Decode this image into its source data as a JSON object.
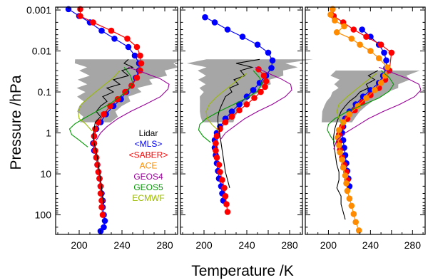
{
  "chart_data": {
    "type": "line",
    "xlabel": "Temperature /K",
    "ylabel": "Pressure /hPa",
    "x_ticks": [
      "200",
      "240",
      "280"
    ],
    "x_tick_values": [
      200,
      240,
      280
    ],
    "y_ticks": [
      "0.001",
      "0.01",
      "0.1",
      "1",
      "10",
      "100"
    ],
    "y_tick_values": [
      0.001,
      0.01,
      0.1,
      1,
      10,
      100
    ],
    "xlim": [
      178,
      292
    ],
    "ylim": [
      300,
      0.00085
    ],
    "y_scale": "log",
    "legend": {
      "placement": "lower-right of first panel",
      "entries": [
        {
          "label": "Lidar",
          "color": "#000000"
        },
        {
          "label": "<MLS>",
          "color": "#0000ff"
        },
        {
          "label": "<SABER>",
          "color": "#ff0000"
        },
        {
          "label": "ACE",
          "color": "#ff8c00"
        },
        {
          "label": "GEOS4",
          "color": "#990099"
        },
        {
          "label": "GEOS5",
          "color": "#009900"
        },
        {
          "label": "ECMWF",
          "color": "#99bb00"
        }
      ]
    },
    "panels": [
      {
        "series": [
          {
            "name": "<MLS>",
            "color": "#0000ff",
            "marker": "circle",
            "x": [
              190,
              200,
              210,
              221,
              233,
              246,
              252,
              256,
              256,
              253,
              249,
              244,
              239,
              232,
              225,
              220,
              216,
              214,
              213,
              214,
              216,
              217,
              218,
              219,
              220,
              221,
              222,
              222,
              223,
              224,
              223,
              220
            ],
            "y": [
              0.00095,
              0.0014,
              0.002,
              0.0032,
              0.005,
              0.008,
              0.013,
              0.02,
              0.03,
              0.045,
              0.07,
              0.1,
              0.15,
              0.22,
              0.35,
              0.55,
              0.8,
              1.2,
              1.8,
              2.7,
              4,
              6,
              9,
              13,
              20,
              30,
              45,
              65,
              100,
              140,
              200,
              250
            ]
          },
          {
            "name": "<SABER>",
            "color": "#ff0000",
            "marker": "circle",
            "x": [
              201,
              201,
              213,
              230,
              245,
              254,
              257,
              258,
              257,
              254,
              249,
              243,
              236,
              229,
              223,
              218,
              215,
              214,
              214,
              215,
              216,
              217,
              218,
              219,
              220,
              220,
              221,
              221,
              222
            ],
            "y": [
              0.00095,
              0.0014,
              0.002,
              0.0032,
              0.005,
              0.008,
              0.013,
              0.02,
              0.03,
              0.045,
              0.07,
              0.1,
              0.15,
              0.22,
              0.35,
              0.55,
              0.8,
              1.2,
              1.8,
              2.7,
              4,
              6,
              9,
              13,
              20,
              30,
              45,
              65,
              100
            ]
          },
          {
            "name": "Lidar",
            "color": "#000000",
            "marker": "none",
            "x": [
              246,
              242,
              250,
              240,
              246,
              232,
              238,
              226,
              232,
              222,
              226,
              220,
              216,
              220,
              215,
              214,
              213,
              214,
              216,
              217,
              218,
              219,
              220,
              221,
              222,
              223
            ],
            "y": [
              0.016,
              0.02,
              0.025,
              0.03,
              0.04,
              0.05,
              0.065,
              0.08,
              0.1,
              0.13,
              0.17,
              0.22,
              0.3,
              0.4,
              0.55,
              0.8,
              1.2,
              1.8,
              2.7,
              4,
              6,
              9,
              14,
              22,
              35,
              55
            ]
          },
          {
            "name": "GEOS4",
            "color": "#990099",
            "marker": "none",
            "x": [
              246,
              262,
              276,
              284,
              283,
              276,
              262,
              248,
              236,
              226,
              220,
              216
            ],
            "y": [
              0.025,
              0.035,
              0.048,
              0.065,
              0.085,
              0.13,
              0.2,
              0.3,
              0.45,
              0.7,
              1.0,
              1.5
            ]
          },
          {
            "name": "GEOS5",
            "color": "#009900",
            "marker": "none",
            "x": [
              242,
              248,
              250,
              246,
              238,
              228,
              216,
              204,
              196,
              191,
              193,
              200,
              208
            ],
            "y": [
              0.025,
              0.04,
              0.06,
              0.09,
              0.13,
              0.2,
              0.3,
              0.45,
              0.6,
              0.8,
              1.1,
              1.5,
              2.2
            ]
          },
          {
            "name": "ECMWF",
            "color": "#99bb00",
            "marker": "none",
            "x": [
              238,
              232,
              220,
              210,
              202,
              199,
              200,
              206,
              212
            ],
            "y": [
              0.03,
              0.045,
              0.08,
              0.13,
              0.2,
              0.3,
              0.45,
              0.6,
              0.9
            ]
          }
        ]
      },
      {
        "series": [
          {
            "name": "<MLS>",
            "color": "#0000ff",
            "marker": "circle",
            "x": [
              201,
              210,
              222,
              236,
              250,
              260,
              264,
              263,
              258,
              252,
              246,
              240,
              233,
              226,
              220,
              215,
              212,
              210,
              210,
              211,
              212,
              213,
              214,
              216,
              217,
              218
            ],
            "y": [
              0.0015,
              0.002,
              0.003,
              0.0045,
              0.007,
              0.011,
              0.017,
              0.026,
              0.04,
              0.06,
              0.09,
              0.13,
              0.2,
              0.3,
              0.45,
              0.7,
              1.0,
              1.5,
              2.3,
              3.5,
              5.5,
              8.5,
              13,
              20,
              30,
              45
            ]
          },
          {
            "name": "<SABER>",
            "color": "#ff0000",
            "marker": "circle",
            "x": [
              251,
              256,
              258,
              257,
              253,
              247,
              240,
              233,
              226,
              220,
              215,
              212,
              211,
              211,
              212,
              214,
              215,
              217,
              219,
              220,
              221,
              222
            ],
            "y": [
              0.028,
              0.04,
              0.055,
              0.075,
              0.1,
              0.14,
              0.2,
              0.28,
              0.4,
              0.55,
              0.8,
              1.2,
              1.8,
              2.7,
              4,
              6,
              9,
              14,
              22,
              35,
              55,
              85
            ]
          },
          {
            "name": "Lidar",
            "color": "#000000",
            "marker": "none",
            "x": [
              252,
              230,
              245,
              234,
              238,
              228,
              232,
              224,
              226,
              220,
              218,
              216,
              214,
              213,
              213,
              214,
              215,
              216,
              217,
              218,
              219,
              220,
              222,
              224
            ],
            "y": [
              0.016,
              0.02,
              0.025,
              0.03,
              0.04,
              0.05,
              0.065,
              0.08,
              0.1,
              0.13,
              0.17,
              0.22,
              0.3,
              0.4,
              0.55,
              0.8,
              1.2,
              1.8,
              2.7,
              4,
              6,
              9,
              14,
              22
            ]
          },
          {
            "name": "GEOS4",
            "color": "#990099",
            "marker": "none",
            "x": [
              248,
              260,
              272,
              281,
              282,
              276,
              264,
              250,
              238,
              228,
              220,
              215
            ],
            "y": [
              0.025,
              0.035,
              0.048,
              0.065,
              0.09,
              0.13,
              0.2,
              0.3,
              0.45,
              0.7,
              1.0,
              1.5
            ]
          },
          {
            "name": "GEOS5",
            "color": "#009900",
            "marker": "none",
            "x": [
              246,
              252,
              254,
              250,
              240,
              228,
              214,
              202,
              196,
              195,
              199,
              206
            ],
            "y": [
              0.03,
              0.045,
              0.065,
              0.095,
              0.14,
              0.2,
              0.3,
              0.45,
              0.62,
              0.85,
              1.2,
              1.7
            ]
          },
          {
            "name": "ECMWF",
            "color": "#99bb00",
            "marker": "none",
            "x": [
              240,
              232,
              222,
              212,
              205,
              202,
              203,
              208,
              214
            ],
            "y": [
              0.035,
              0.05,
              0.08,
              0.13,
              0.2,
              0.3,
              0.45,
              0.65,
              0.9
            ]
          }
        ]
      },
      {
        "series": [
          {
            "name": "<MLS>",
            "color": "#0000ff",
            "marker": "circle",
            "x": [
              232,
              240,
              248,
              253,
              255,
              255,
              252,
              248,
              240,
              233,
              226,
              220,
              216,
              214,
              213,
              214,
              215,
              216,
              217,
              218,
              219,
              220
            ],
            "y": [
              0.003,
              0.0045,
              0.007,
              0.011,
              0.017,
              0.026,
              0.04,
              0.06,
              0.09,
              0.13,
              0.2,
              0.3,
              0.45,
              0.7,
              1.0,
              1.5,
              2.3,
              3.5,
              5.5,
              8.5,
              13,
              20
            ]
          },
          {
            "name": "<SABER>",
            "color": "#ff0000",
            "marker": "circle",
            "x": [
              204,
              205,
              214,
              224,
              236,
              250,
              260,
              258,
              254,
              248,
              240,
              232,
              225,
              218,
              213,
              210,
              210,
              211,
              213,
              215,
              217,
              218
            ],
            "y": [
              0.00095,
              0.0014,
              0.002,
              0.003,
              0.0045,
              0.007,
              0.011,
              0.03,
              0.05,
              0.08,
              0.12,
              0.18,
              0.28,
              0.45,
              0.7,
              1.1,
              1.7,
              2.6,
              4,
              6,
              9,
              14
            ]
          },
          {
            "name": "ACE",
            "color": "#ff8c00",
            "marker": "circle",
            "x": [
              204,
              202,
              206,
              215,
              208,
              222,
              230,
              240,
              248,
              256,
              254,
              250,
              244,
              236,
              228,
              220,
              214,
              210,
              209,
              210,
              211,
              213,
              214,
              216,
              217,
              218,
              220,
              222,
              224,
              226,
              229
            ],
            "y": [
              0.00095,
              0.0013,
              0.0018,
              0.0025,
              0.0035,
              0.005,
              0.007,
              0.01,
              0.015,
              0.025,
              0.04,
              0.06,
              0.09,
              0.14,
              0.22,
              0.35,
              0.55,
              0.85,
              1.3,
              2.0,
              3.0,
              4.5,
              7,
              11,
              17,
              26,
              40,
              60,
              95,
              150,
              240
            ]
          },
          {
            "name": "Lidar",
            "color": "#000000",
            "marker": "none",
            "x": [
              247,
              238,
              244,
              236,
              238,
              230,
              226,
              220,
              216,
              212,
              210,
              208,
              206,
              205,
              205,
              206,
              207,
              208,
              210,
              210,
              208,
              212,
              212,
              214,
              216
            ],
            "y": [
              0.03,
              0.04,
              0.05,
              0.065,
              0.08,
              0.1,
              0.13,
              0.17,
              0.22,
              0.3,
              0.4,
              0.55,
              0.8,
              1.2,
              1.8,
              2.7,
              4,
              6,
              9,
              14,
              22,
              35,
              55,
              85,
              130
            ]
          },
          {
            "name": "GEOS4",
            "color": "#990099",
            "marker": "none",
            "x": [
              248,
              262,
              276,
              286,
              288,
              282,
              268,
              252,
              238,
              226,
              216,
              208,
              205
            ],
            "y": [
              0.025,
              0.035,
              0.048,
              0.065,
              0.09,
              0.13,
              0.2,
              0.3,
              0.45,
              0.7,
              1.0,
              1.5,
              2.5
            ]
          },
          {
            "name": "GEOS5",
            "color": "#009900",
            "marker": "none",
            "x": [
              250,
              258,
              262,
              258,
              248,
              234,
              218,
              206,
              200,
              199,
              202,
              206
            ],
            "y": [
              0.03,
              0.045,
              0.065,
              0.095,
              0.14,
              0.2,
              0.3,
              0.45,
              0.62,
              0.85,
              1.2,
              1.7
            ]
          },
          {
            "name": "ECMWF",
            "color": "#99bb00",
            "marker": "none",
            "x": [
              246,
              238,
              228,
              218,
              210,
              208,
              210,
              214
            ],
            "y": [
              0.035,
              0.05,
              0.08,
              0.13,
              0.2,
              0.3,
              0.45,
              0.65
            ]
          }
        ]
      }
    ],
    "lidar_spread_band_color": "#888888"
  }
}
